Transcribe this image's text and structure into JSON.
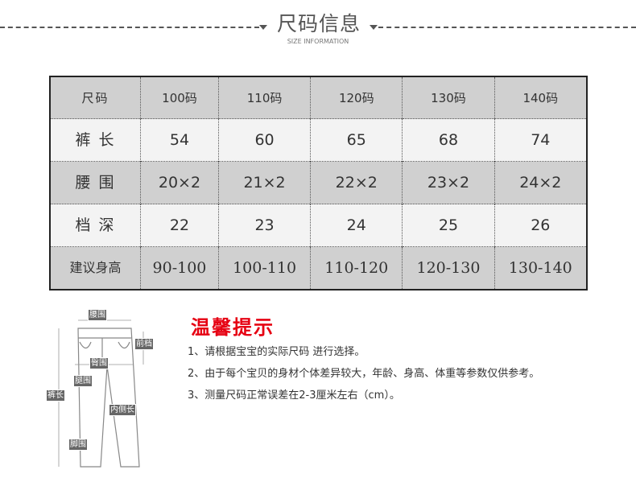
{
  "header": {
    "title": "尺码信息",
    "subtitle": "SIZE INFORMATION"
  },
  "table": {
    "header": [
      "尺码",
      "100码",
      "110码",
      "120码",
      "130码",
      "140码"
    ],
    "rows": [
      {
        "label": "裤 长",
        "values": [
          "54",
          "60",
          "65",
          "68",
          "74"
        ]
      },
      {
        "label": "腰 围",
        "values": [
          "20×2",
          "21×2",
          "22×2",
          "23×2",
          "24×2"
        ]
      },
      {
        "label": "档 深",
        "values": [
          "22",
          "23",
          "24",
          "25",
          "26"
        ]
      },
      {
        "label": "建议身高",
        "values": [
          "90-100",
          "100-110",
          "110-120",
          "120-130",
          "130-140"
        ]
      }
    ]
  },
  "diagram": {
    "labels": {
      "waist": "腰围",
      "front_rise": "前档",
      "hip": "臀围",
      "thigh": "腿围",
      "length": "裤长",
      "inseam": "内侧长",
      "hem": "脚围"
    }
  },
  "tips": {
    "title": "温馨提示",
    "items": [
      "1、请根据宝宝的实际尺码 进行选择。",
      "2、由于每个宝贝的身材个体差异较大，年龄、身高、体重等参数仅供参考。",
      "3、测量尺码正常误差在2-3厘米左右（cm）。"
    ]
  },
  "colors": {
    "accent": "#e60012",
    "row_grey": "#d0d0d0",
    "row_light": "#f3f3f3"
  }
}
